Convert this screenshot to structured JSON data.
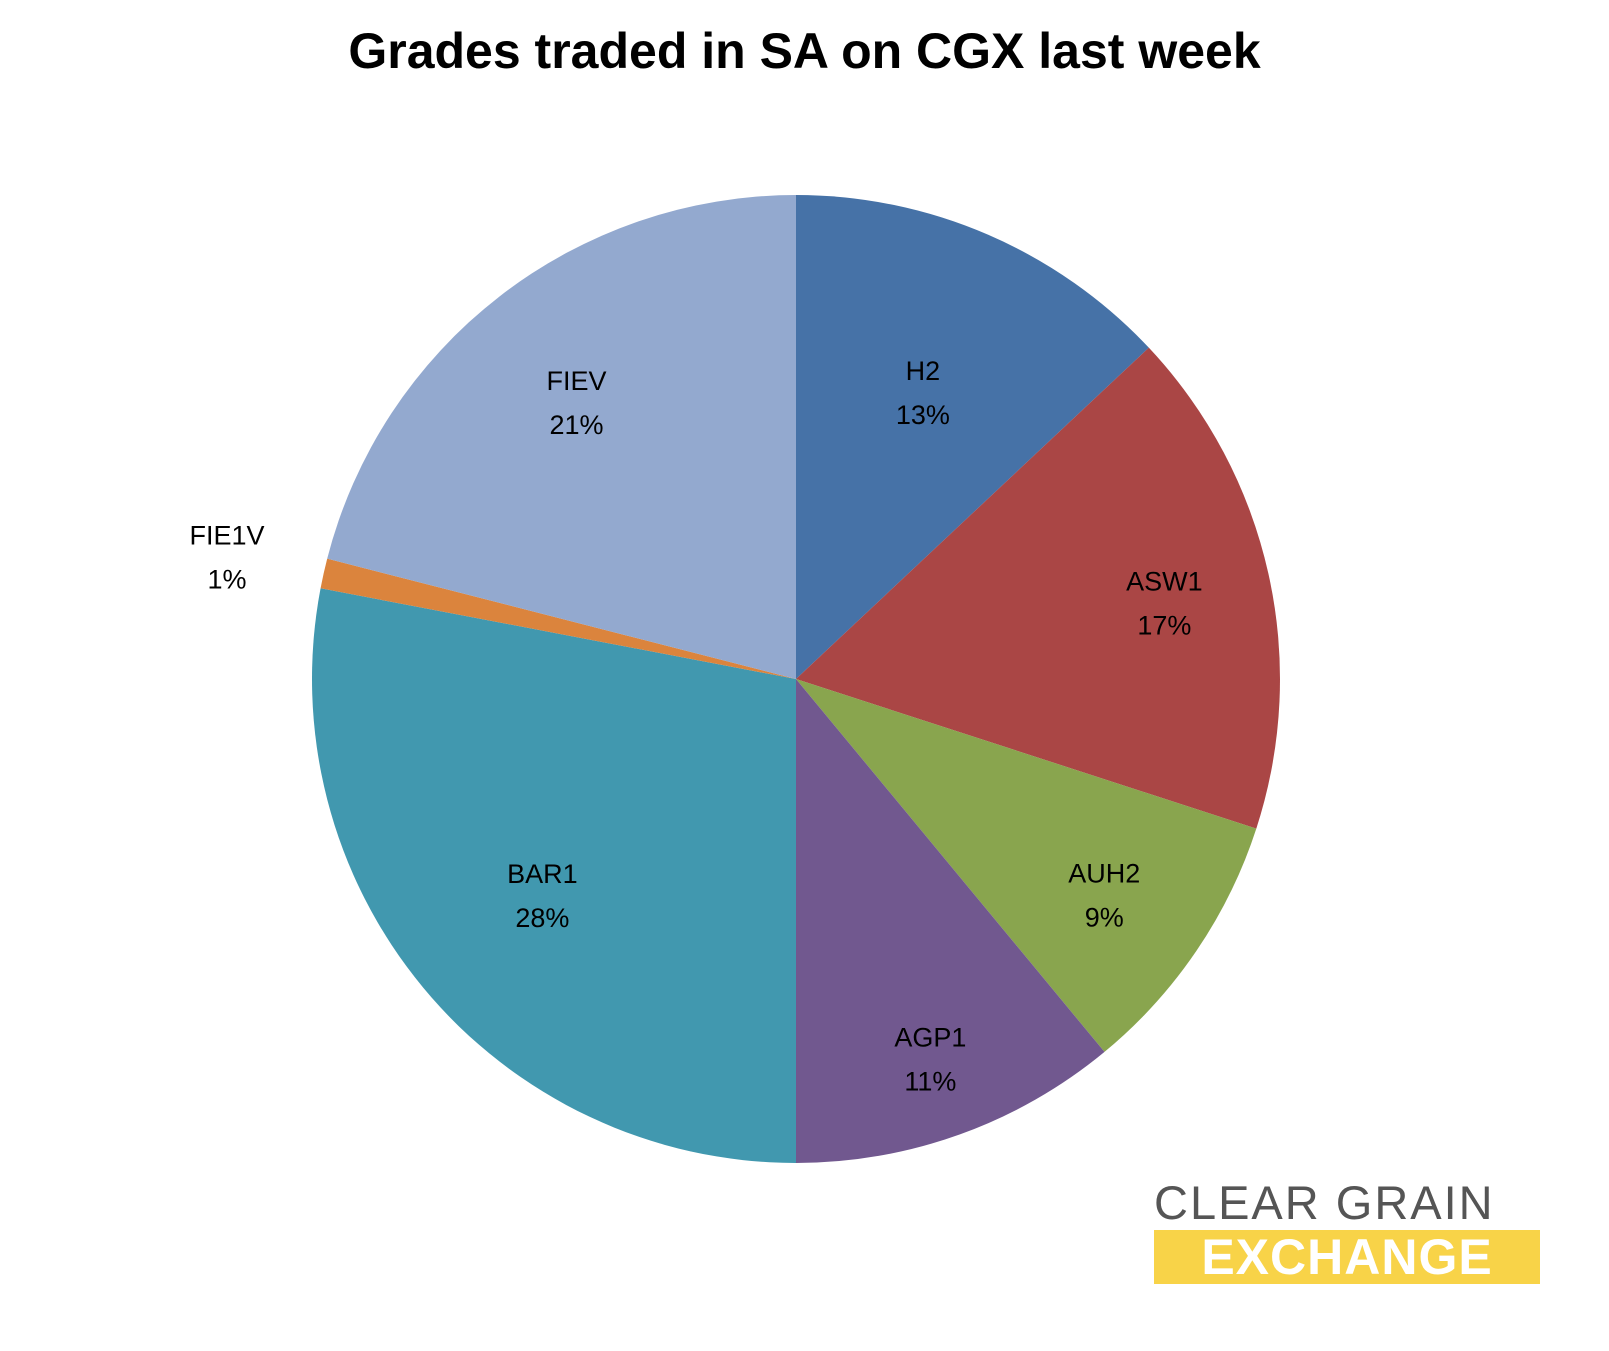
{
  "chart_data": {
    "type": "pie",
    "title": "Grades traded in SA on CGX last week",
    "slices": [
      {
        "label": "H2",
        "percent_label": "13%",
        "value": 13,
        "color": "#4672A7"
      },
      {
        "label": "ASW1",
        "percent_label": "17%",
        "value": 17,
        "color": "#AA4645"
      },
      {
        "label": "AUH2",
        "percent_label": "9%",
        "value": 9,
        "color": "#89A54E"
      },
      {
        "label": "AGP1",
        "percent_label": "11%",
        "value": 11,
        "color": "#71588F"
      },
      {
        "label": "BAR1",
        "percent_label": "28%",
        "value": 28,
        "color": "#4198AF"
      },
      {
        "label": "FIE1V",
        "percent_label": "1%",
        "value": 1,
        "color": "#DB843D"
      },
      {
        "label": "FIEV",
        "percent_label": "21%",
        "value": 21,
        "color": "#93A9CF"
      }
    ],
    "start_angle": "12 o'clock",
    "direction": "clockwise",
    "legend": "none",
    "data_labels": "inside, category name and percentage"
  },
  "logo": {
    "line1": "CLEAR GRAIN",
    "line2": "EXCHANGE",
    "line1_color": "#555555",
    "line2_background": "#F8D348"
  }
}
